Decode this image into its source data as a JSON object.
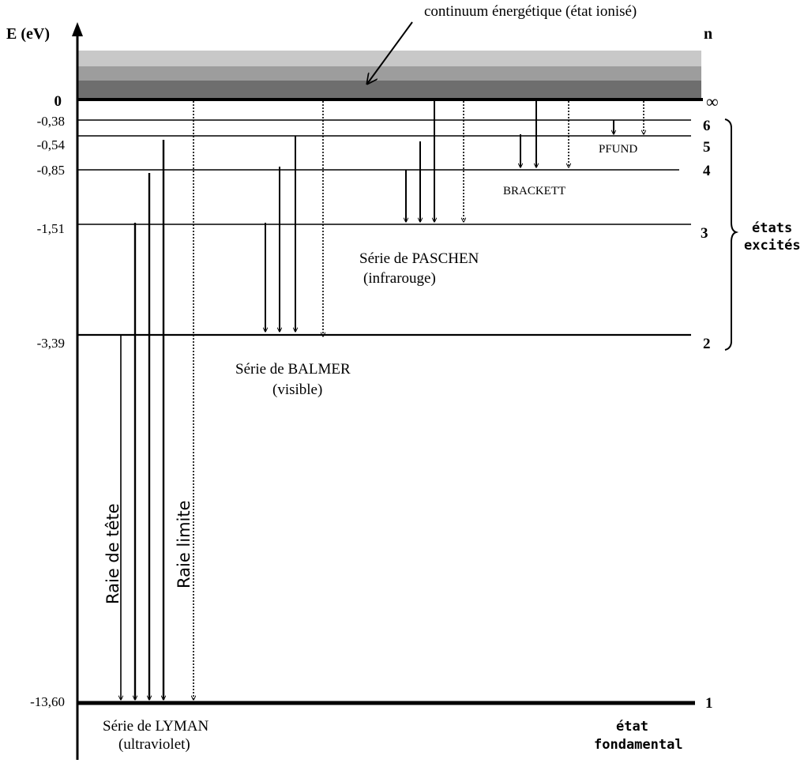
{
  "axis": {
    "energy_label": "E (eV)",
    "n_label": "n"
  },
  "continuum_label": "continuum énergétique (état ionisé)",
  "levels": [
    {
      "n": "∞",
      "energy": "0"
    },
    {
      "n": "6",
      "energy": "-0,38"
    },
    {
      "n": "5",
      "energy": "-0,54"
    },
    {
      "n": "4",
      "energy": "-0,85"
    },
    {
      "n": "3",
      "energy": "-1,51"
    },
    {
      "n": "2",
      "energy": "-3,39"
    },
    {
      "n": "1",
      "energy": "-13,60"
    }
  ],
  "series": {
    "lyman": {
      "line1": "Série de LYMAN",
      "line2": "(ultraviolet)"
    },
    "balmer": {
      "line1": "Série de BALMER",
      "line2": "(visible)"
    },
    "paschen": {
      "line1": "Série de PASCHEN",
      "line2": "(infrarouge)"
    },
    "brackett": {
      "line1": "BRACKETT"
    },
    "pfund": {
      "line1": "PFUND"
    }
  },
  "raie_tete": "Raie de tête",
  "raie_limite": "Raie limite",
  "excited_states": {
    "line1": "états",
    "line2": "excités"
  },
  "ground_state": {
    "line1": "état",
    "line2": "fondamental"
  }
}
